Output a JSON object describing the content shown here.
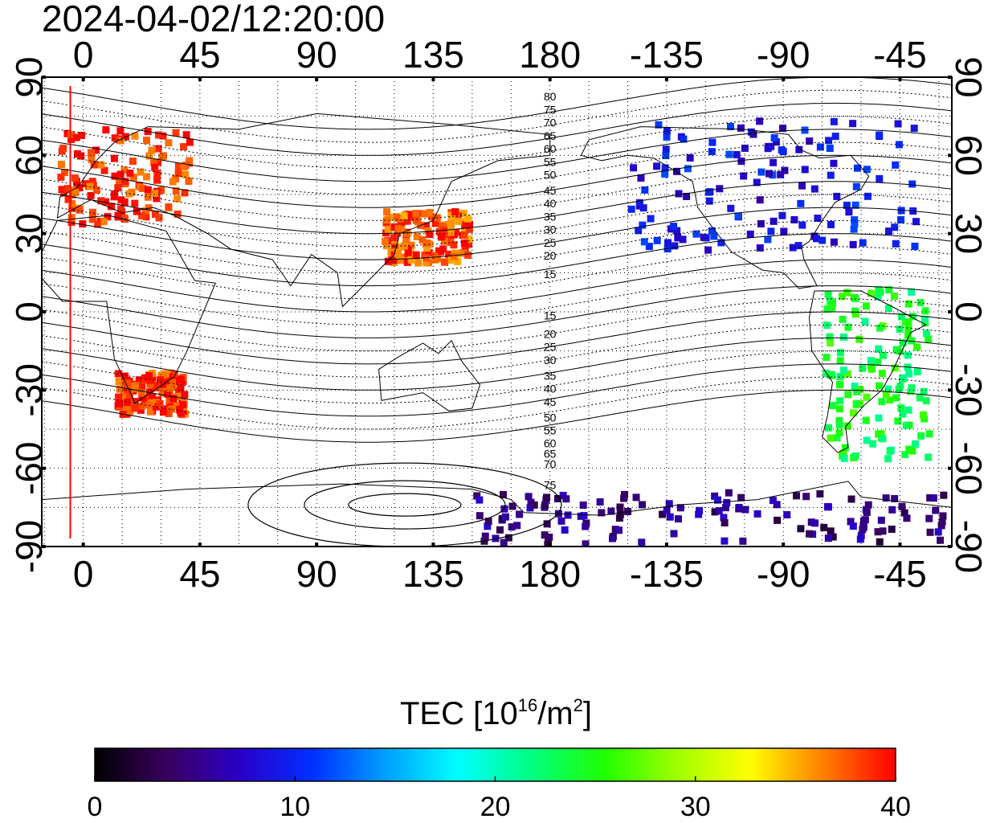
{
  "title": "2024-04-02/12:20:00",
  "map": {
    "lon_ticks_top": [
      "0",
      "45",
      "90",
      "135",
      "180",
      "-135",
      "-90",
      "-45"
    ],
    "lon_ticks_bottom": [
      "0",
      "45",
      "90",
      "135",
      "180",
      "-135",
      "-90",
      "-45"
    ],
    "lat_ticks_left": [
      "90",
      "60",
      "30",
      "0",
      "-30",
      "-60",
      "-90"
    ],
    "lat_ticks_right": [
      "90",
      "60",
      "30",
      "0",
      "-30",
      "-60",
      "-90"
    ],
    "lon_tick_values": [
      0,
      45,
      90,
      135,
      180,
      225,
      270,
      315
    ],
    "lat_tick_values": [
      90,
      60,
      30,
      0,
      -30,
      -60,
      -90
    ],
    "lon_range": [
      -16,
      335
    ],
    "lat_range": [
      -90,
      90
    ],
    "grid": "dotted",
    "red_line_lon": -5,
    "contour_labels_north": [
      "80",
      "75",
      "70",
      "65",
      "60",
      "55",
      "50",
      "45",
      "40",
      "35",
      "30",
      "25",
      "20",
      "15"
    ],
    "contour_labels_south": [
      "15",
      "20",
      "25",
      "30",
      "35",
      "40",
      "45",
      "50",
      "55",
      "60",
      "65",
      "70",
      "75"
    ],
    "contour_label_lon": 180,
    "contour_label_lats_north": [
      81,
      76,
      71,
      66,
      61,
      56,
      51,
      45,
      40,
      35,
      30,
      25,
      20,
      13
    ],
    "contour_label_lats_south": [
      -3,
      -10,
      -15,
      -20,
      -26,
      -31,
      -36,
      -42,
      -47,
      -52,
      -56,
      -60,
      -68
    ],
    "tec_regions": [
      {
        "name": "europe",
        "lon": [
          -10,
          40
        ],
        "lat": [
          35,
          72
        ],
        "tec": 39
      },
      {
        "name": "africa-south",
        "lon": [
          12,
          38
        ],
        "lat": [
          -38,
          -22
        ],
        "tec": 39
      },
      {
        "name": "east-asia",
        "lon": [
          115,
          148
        ],
        "lat": [
          20,
          40
        ],
        "tec": 38
      },
      {
        "name": "north-america",
        "lon": [
          210,
          320
        ],
        "lat": [
          25,
          75
        ],
        "tec": 9
      },
      {
        "name": "south-america",
        "lon": [
          285,
          325
        ],
        "lat": [
          -55,
          10
        ],
        "tec": 24
      },
      {
        "name": "antarctica",
        "lon": [
          150,
          335
        ],
        "lat": [
          -88,
          -68
        ],
        "tec": 5
      }
    ]
  },
  "colorbar": {
    "title_main": "TEC  [10",
    "title_sup1": "16",
    "title_mid": "/m",
    "title_sup2": "2",
    "title_end": "]",
    "min": 0,
    "max": 40,
    "tick_labels": [
      "0",
      "10",
      "20",
      "30",
      "40"
    ],
    "colors": [
      "#000000",
      "#3a0060",
      "#2a00c8",
      "#0030ff",
      "#00a0ff",
      "#00ffff",
      "#00ff80",
      "#20ff00",
      "#a0ff00",
      "#ffff00",
      "#ff8000",
      "#ff0000"
    ]
  }
}
